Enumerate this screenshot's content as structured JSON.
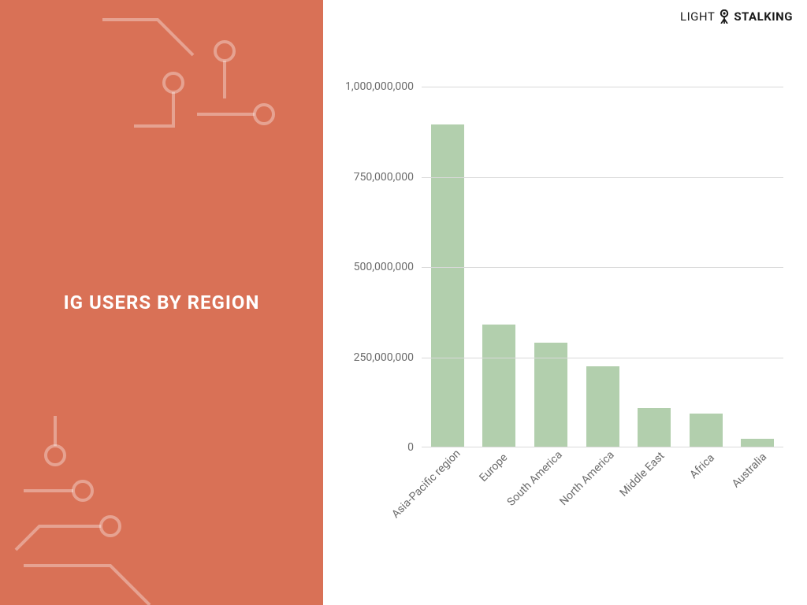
{
  "brand": {
    "part1": "LIGHT",
    "part2": "STALKING"
  },
  "sidebar": {
    "title": "IG USERS BY REGION",
    "background_color": "#d97156",
    "deco_stroke": "#ffffff",
    "title_fontsize": 24,
    "title_color": "#ffffff"
  },
  "chart": {
    "type": "bar",
    "categories": [
      "Asia-Pacific region",
      "Europe",
      "South America",
      "North America",
      "Middle East",
      "Africa",
      "Australia"
    ],
    "values": [
      895000000,
      340000000,
      290000000,
      225000000,
      110000000,
      95000000,
      25000000
    ],
    "bar_color": "#b2cfad",
    "background_color": "#ffffff",
    "grid_color": "#d9d9d9",
    "axis_text_color": "#6b6b6b",
    "ylim": [
      0,
      1000000000
    ],
    "yticks": [
      0,
      250000000,
      500000000,
      750000000,
      1000000000
    ],
    "ytick_labels": [
      "0",
      "250,000,000",
      "500,000,000",
      "750,000,000",
      "1,000,000,000"
    ],
    "label_fontsize": 14,
    "x_label_rotation_deg": -45,
    "bar_width_ratio": 0.64
  }
}
